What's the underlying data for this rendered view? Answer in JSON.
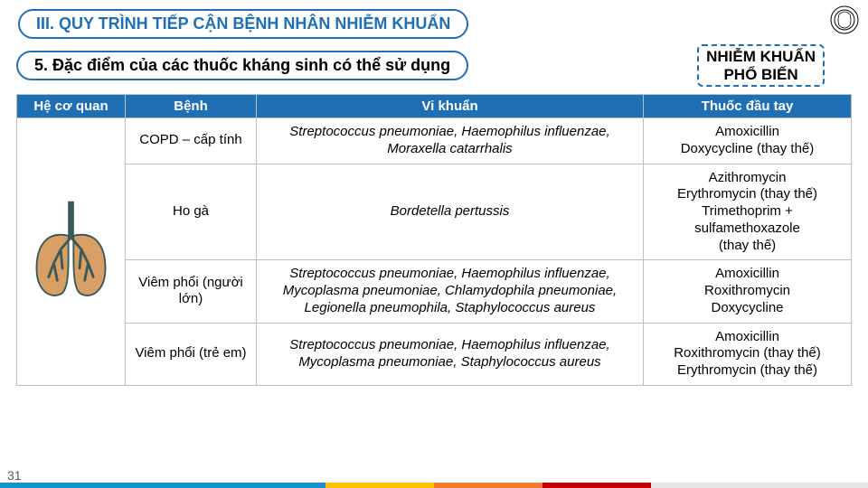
{
  "colors": {
    "accent": "#1f6fb5",
    "accent2": "#1f6fb5",
    "header_bg": "#1f6fb5",
    "header_fg": "#ffffff",
    "border": "#bfbfbf"
  },
  "section_title": "III. QUY TRÌNH TIẾP CẬN BỆNH NHÂN NHIỄM KHUẨN",
  "subtitle": "5. Đặc điểm của các thuốc kháng sinh có thể sử dụng",
  "callout_line1": "NHIỄM KHUẨN",
  "callout_line2": "PHỔ BIẾN",
  "page_number": "31",
  "table": {
    "headers": [
      "Hệ cơ quan",
      "Bệnh",
      "Vi khuẩn",
      "Thuốc đầu tay"
    ],
    "rows": [
      {
        "disease": "COPD – cấp tính",
        "bacteria": "Streptococcus pneumoniae, Haemophilus influenzae, Moraxella catarrhalis",
        "drug": "Amoxicillin\nDoxycycline (thay thế)"
      },
      {
        "disease": "Ho gà",
        "bacteria": "Bordetella pertussis",
        "drug": "Azithromycin\nErythromycin (thay thế)\nTrimethoprim + sulfamethoxazole\n(thay thế)"
      },
      {
        "disease": "Viêm phổi (người lớn)",
        "bacteria": "Streptococcus pneumoniae, Haemophilus influenzae, Mycoplasma pneumoniae, Chlamydophila pneumoniae, Legionella pneumophila, Staphylococcus aureus",
        "drug": "Amoxicillin\nRoxithromycin\nDoxycycline"
      },
      {
        "disease": "Viêm phổi (trẻ em)",
        "bacteria": "Streptococcus pneumoniae, Haemophilus influenzae, Mycoplasma pneumoniae, Staphylococcus aureus",
        "drug": "Amoxicillin\nRoxithromycin (thay thế)\nErythromycin (thay thế)"
      }
    ]
  }
}
